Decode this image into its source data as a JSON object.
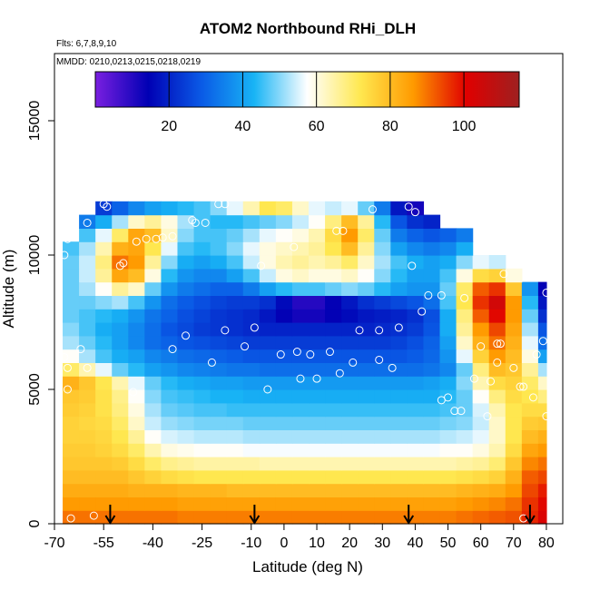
{
  "chart_data": {
    "type": "heatmap",
    "title": "ATOM2 Northbound RHi_DLH",
    "subtitle_flights": "Flts: 6,7,8,9,10",
    "subtitle_dates": "MMDD: 0210,0213,0215,0218,0219",
    "xlabel": "Latitude (deg N)",
    "ylabel": "Altitude (m)",
    "xlim": [
      -70,
      85
    ],
    "ylim": [
      0,
      17500
    ],
    "x_ticks": [
      -70,
      -55,
      -40,
      -25,
      -10,
      0,
      10,
      20,
      30,
      40,
      50,
      60,
      70,
      80
    ],
    "x_tick_labels": [
      "-70",
      "-55",
      "-40",
      "-25",
      "-10",
      "0",
      "10",
      "20",
      "30",
      "40",
      "50",
      "60",
      "70",
      "80"
    ],
    "y_ticks": [
      0,
      5000,
      10000,
      15000
    ],
    "y_tick_labels": [
      "0",
      "5000",
      "10000",
      "15000"
    ],
    "colorbar": {
      "min": 0,
      "max": 115,
      "ticks": [
        20,
        40,
        60,
        80,
        100
      ],
      "tick_labels": [
        "20",
        "40",
        "60",
        "80",
        "100"
      ]
    },
    "lat_edges": [
      -67.5,
      -62.5,
      -57.5,
      -52.5,
      -47.5,
      -42.5,
      -37.5,
      -32.5,
      -27.5,
      -22.5,
      -17.5,
      -12.5,
      -7.5,
      -2.5,
      2.5,
      7.5,
      12.5,
      17.5,
      22.5,
      27.5,
      32.5,
      37.5,
      42.5,
      47.5,
      52.5,
      57.5,
      62.5,
      67.5,
      72.5,
      77.5,
      80.0
    ],
    "alt_edges": [
      0,
      500,
      1000,
      1500,
      2000,
      2500,
      3000,
      3500,
      4000,
      4500,
      5000,
      5500,
      6000,
      6500,
      7000,
      7500,
      8000,
      8500,
      9000,
      9500,
      10000,
      10500,
      11000,
      11500,
      12000
    ],
    "rhi_grid": [
      [
        90,
        90,
        90,
        90,
        90,
        90,
        90,
        89,
        89,
        89,
        89,
        89,
        89,
        89,
        89,
        89,
        89,
        89,
        89,
        89,
        89,
        89,
        89,
        89,
        90,
        91,
        92,
        93,
        97,
        102
      ],
      [
        86,
        86,
        86,
        86,
        86,
        86,
        86,
        85,
        85,
        85,
        85,
        85,
        85,
        85,
        85,
        85,
        85,
        85,
        85,
        85,
        85,
        85,
        85,
        85,
        86,
        87,
        88,
        90,
        96,
        100
      ],
      [
        83,
        83,
        83,
        83,
        82,
        82,
        82,
        81,
        81,
        81,
        80,
        80,
        80,
        80,
        80,
        80,
        80,
        80,
        80,
        80,
        80,
        80,
        80,
        80,
        81,
        82,
        83,
        86,
        94,
        98
      ],
      [
        80,
        80,
        80,
        80,
        78,
        76,
        74,
        73,
        72,
        72,
        72,
        72,
        72,
        72,
        72,
        72,
        72,
        72,
        72,
        72,
        72,
        72,
        72,
        72,
        73,
        74,
        76,
        82,
        92,
        94
      ],
      [
        78,
        78,
        78,
        77,
        74,
        70,
        67,
        66,
        65,
        65,
        65,
        65,
        64,
        64,
        64,
        64,
        64,
        64,
        64,
        64,
        64,
        64,
        64,
        64,
        65,
        66,
        69,
        78,
        88,
        90
      ],
      [
        77,
        77,
        76,
        74,
        70,
        64,
        60,
        59,
        58,
        58,
        58,
        57,
        57,
        57,
        57,
        57,
        57,
        57,
        57,
        57,
        57,
        57,
        57,
        58,
        58,
        60,
        64,
        74,
        84,
        86
      ],
      [
        76,
        76,
        75,
        72,
        66,
        58,
        55,
        54,
        53,
        53,
        53,
        52,
        52,
        52,
        52,
        52,
        52,
        52,
        52,
        52,
        52,
        52,
        52,
        53,
        54,
        56,
        62,
        72,
        80,
        82
      ],
      [
        76,
        75,
        74,
        70,
        62,
        54,
        51,
        50,
        49,
        49,
        49,
        48,
        48,
        48,
        48,
        48,
        48,
        48,
        48,
        48,
        48,
        48,
        48,
        49,
        50,
        54,
        62,
        72,
        77,
        78
      ],
      [
        77,
        76,
        73,
        68,
        60,
        52,
        48,
        47,
        46,
        46,
        45,
        45,
        45,
        45,
        45,
        45,
        45,
        45,
        45,
        45,
        45,
        45,
        45,
        46,
        48,
        55,
        64,
        72,
        74,
        74
      ],
      [
        78,
        77,
        73,
        67,
        58,
        50,
        46,
        45,
        44,
        43,
        43,
        42,
        42,
        42,
        42,
        42,
        42,
        42,
        42,
        42,
        42,
        42,
        42,
        44,
        48,
        58,
        68,
        74,
        72,
        68
      ],
      [
        82,
        78,
        72,
        64,
        56,
        48,
        44,
        42,
        41,
        40,
        40,
        39,
        39,
        39,
        39,
        39,
        39,
        39,
        39,
        39,
        39,
        39,
        40,
        42,
        50,
        64,
        74,
        76,
        70,
        62
      ],
      [
        70,
        64,
        56,
        48,
        44,
        40,
        38,
        36,
        35,
        34,
        33,
        33,
        32,
        32,
        32,
        32,
        32,
        32,
        32,
        32,
        32,
        32,
        33,
        36,
        48,
        68,
        80,
        78,
        66,
        52
      ],
      [
        58,
        52,
        46,
        42,
        40,
        36,
        34,
        32,
        31,
        30,
        29,
        28,
        28,
        28,
        28,
        28,
        28,
        28,
        28,
        28,
        28,
        29,
        31,
        38,
        56,
        76,
        86,
        80,
        60,
        40
      ],
      [
        52,
        48,
        44,
        40,
        36,
        32,
        30,
        28,
        27,
        26,
        25,
        24,
        24,
        24,
        24,
        24,
        24,
        24,
        24,
        24,
        25,
        27,
        30,
        40,
        62,
        82,
        90,
        82,
        56,
        32
      ],
      [
        50,
        46,
        42,
        40,
        36,
        32,
        28,
        26,
        24,
        23,
        22,
        21,
        20,
        20,
        20,
        20,
        20,
        20,
        20,
        21,
        22,
        24,
        28,
        42,
        66,
        86,
        94,
        84,
        52,
        28
      ],
      [
        48,
        46,
        44,
        42,
        38,
        33,
        30,
        27,
        25,
        23,
        22,
        21,
        18,
        14,
        12,
        12,
        14,
        16,
        18,
        19,
        20,
        22,
        27,
        42,
        68,
        92,
        100,
        86,
        48,
        22
      ],
      [
        48,
        48,
        50,
        52,
        46,
        38,
        32,
        29,
        27,
        25,
        24,
        24,
        22,
        16,
        10,
        10,
        14,
        18,
        22,
        24,
        26,
        28,
        32,
        46,
        72,
        96,
        104,
        86,
        44,
        18
      ],
      [
        48,
        52,
        58,
        66,
        62,
        48,
        38,
        34,
        32,
        30,
        30,
        34,
        40,
        44,
        46,
        46,
        48,
        50,
        48,
        44,
        40,
        38,
        38,
        48,
        70,
        92,
        96,
        78,
        38,
        14
      ],
      [
        48,
        54,
        66,
        84,
        80,
        60,
        44,
        38,
        36,
        36,
        40,
        46,
        54,
        60,
        62,
        60,
        60,
        62,
        58,
        50,
        44,
        40,
        40,
        46,
        60,
        74,
        76,
        60,
        28,
        10
      ],
      [
        48,
        54,
        68,
        90,
        86,
        66,
        50,
        42,
        40,
        42,
        46,
        54,
        60,
        64,
        66,
        64,
        66,
        70,
        62,
        52,
        46,
        42,
        40,
        42,
        50,
        56,
        54,
        40,
        20,
        8
      ],
      [
        46,
        52,
        64,
        82,
        84,
        72,
        56,
        46,
        44,
        46,
        50,
        56,
        60,
        62,
        64,
        66,
        72,
        80,
        66,
        50,
        40,
        36,
        34,
        36,
        42,
        44,
        40,
        30,
        16,
        6
      ],
      [
        40,
        46,
        56,
        70,
        84,
        80,
        62,
        50,
        46,
        46,
        48,
        52,
        56,
        58,
        60,
        64,
        74,
        86,
        70,
        48,
        34,
        30,
        28,
        30,
        34,
        36,
        32,
        24,
        12,
        4
      ],
      [
        28,
        34,
        42,
        52,
        62,
        66,
        60,
        52,
        46,
        44,
        44,
        46,
        48,
        50,
        54,
        58,
        68,
        80,
        66,
        44,
        28,
        22,
        20,
        24,
        28,
        30,
        26,
        20,
        10,
        4
      ],
      [
        10,
        16,
        24,
        30,
        36,
        40,
        42,
        44,
        46,
        50,
        56,
        64,
        72,
        70,
        62,
        56,
        54,
        56,
        48,
        34,
        18,
        12,
        10,
        16,
        22,
        24,
        20,
        14,
        8,
        4
      ]
    ],
    "column_top_alt": [
      10500,
      11500,
      12000,
      12000,
      12000,
      12000,
      12000,
      12000,
      12000,
      12000,
      12000,
      12000,
      12000,
      12000,
      12000,
      12000,
      12000,
      12000,
      12000,
      12000,
      12000,
      12000,
      11500,
      11000,
      11000,
      10000,
      10000,
      9500,
      9000,
      9000
    ],
    "observations": [
      {
        "lat": -67,
        "alt": 10000
      },
      {
        "lat": -66,
        "alt": 10600
      },
      {
        "lat": -67,
        "alt": 6200
      },
      {
        "lat": -66,
        "alt": 5800
      },
      {
        "lat": -66,
        "alt": 5000
      },
      {
        "lat": -65,
        "alt": 200
      },
      {
        "lat": -58,
        "alt": 300
      },
      {
        "lat": -62,
        "alt": 6500
      },
      {
        "lat": -60,
        "alt": 5800
      },
      {
        "lat": -60,
        "alt": 11200
      },
      {
        "lat": -55,
        "alt": 11900
      },
      {
        "lat": -54,
        "alt": 11800
      },
      {
        "lat": -50,
        "alt": 9600
      },
      {
        "lat": -49,
        "alt": 9700
      },
      {
        "lat": -45,
        "alt": 10500
      },
      {
        "lat": -42,
        "alt": 10600
      },
      {
        "lat": -39,
        "alt": 10600
      },
      {
        "lat": -37,
        "alt": 10650
      },
      {
        "lat": -34,
        "alt": 10700
      },
      {
        "lat": -34,
        "alt": 6500
      },
      {
        "lat": -46,
        "alt": 4900
      },
      {
        "lat": -30,
        "alt": 7000
      },
      {
        "lat": -28,
        "alt": 11300
      },
      {
        "lat": -27,
        "alt": 11200
      },
      {
        "lat": -24,
        "alt": 11200
      },
      {
        "lat": -20,
        "alt": 11900
      },
      {
        "lat": -18,
        "alt": 11900
      },
      {
        "lat": -22,
        "alt": 6000
      },
      {
        "lat": -18,
        "alt": 7200
      },
      {
        "lat": -12,
        "alt": 6600
      },
      {
        "lat": -9,
        "alt": 7300
      },
      {
        "lat": -7,
        "alt": 9600
      },
      {
        "lat": -5,
        "alt": 5000
      },
      {
        "lat": -1,
        "alt": 6300
      },
      {
        "lat": 3,
        "alt": 10300
      },
      {
        "lat": 4,
        "alt": 6400
      },
      {
        "lat": 5,
        "alt": 5400
      },
      {
        "lat": 8,
        "alt": 6300
      },
      {
        "lat": 10,
        "alt": 5400
      },
      {
        "lat": 14,
        "alt": 6400
      },
      {
        "lat": 16,
        "alt": 10900
      },
      {
        "lat": 18,
        "alt": 10900
      },
      {
        "lat": 17,
        "alt": 5600
      },
      {
        "lat": 21,
        "alt": 6000
      },
      {
        "lat": 23,
        "alt": 7200
      },
      {
        "lat": 27,
        "alt": 11700
      },
      {
        "lat": 29,
        "alt": 7200
      },
      {
        "lat": 29,
        "alt": 6100
      },
      {
        "lat": 33,
        "alt": 5800
      },
      {
        "lat": 35,
        "alt": 7300
      },
      {
        "lat": 38,
        "alt": 11800
      },
      {
        "lat": 40,
        "alt": 11600
      },
      {
        "lat": 39,
        "alt": 9600
      },
      {
        "lat": 42,
        "alt": 7900
      },
      {
        "lat": 44,
        "alt": 8500
      },
      {
        "lat": 48,
        "alt": 8500
      },
      {
        "lat": 48,
        "alt": 4600
      },
      {
        "lat": 50,
        "alt": 4700
      },
      {
        "lat": 52,
        "alt": 4200
      },
      {
        "lat": 54,
        "alt": 4200
      },
      {
        "lat": 55,
        "alt": 8400
      },
      {
        "lat": 58,
        "alt": 5400
      },
      {
        "lat": 60,
        "alt": 6600
      },
      {
        "lat": 63,
        "alt": 5300
      },
      {
        "lat": 62,
        "alt": 4000
      },
      {
        "lat": 65,
        "alt": 6700
      },
      {
        "lat": 66,
        "alt": 6700
      },
      {
        "lat": 65,
        "alt": 6000
      },
      {
        "lat": 67,
        "alt": 9300
      },
      {
        "lat": 70,
        "alt": 5800
      },
      {
        "lat": 72,
        "alt": 5100
      },
      {
        "lat": 73,
        "alt": 5100
      },
      {
        "lat": 73,
        "alt": 200
      },
      {
        "lat": 76,
        "alt": 4700
      },
      {
        "lat": 77,
        "alt": 6300
      },
      {
        "lat": 79,
        "alt": 6800
      },
      {
        "lat": 80,
        "alt": 8600
      },
      {
        "lat": 80,
        "alt": 4000
      }
    ],
    "arrows_at_lat": [
      -53,
      -9,
      38,
      75
    ]
  },
  "colors": {
    "colorbar_stops": [
      "#7a1fe0",
      "#0000b4",
      "#0a5ae6",
      "#18b4f5",
      "#ffffff",
      "#ffe850",
      "#ff9a00",
      "#e00000",
      "#9e2020"
    ],
    "background": "#ffffff",
    "axis": "#000000",
    "marker": "#ffffff"
  }
}
